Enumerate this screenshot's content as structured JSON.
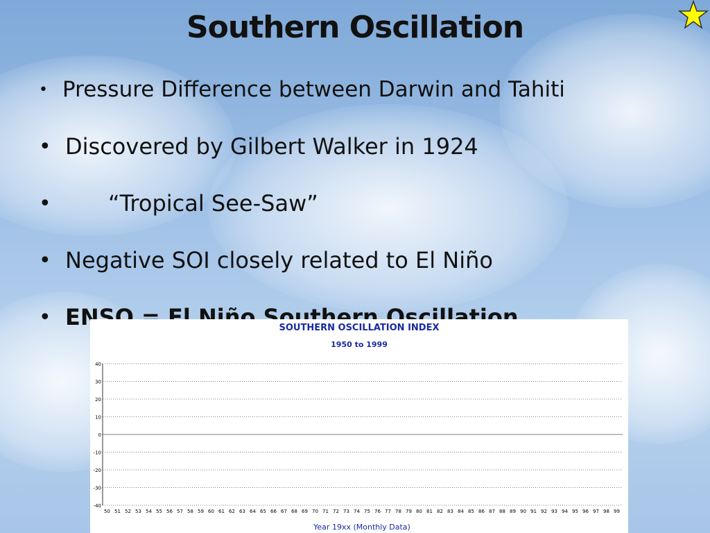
{
  "slide": {
    "title": "Southern Oscillation",
    "bullets": [
      "Pressure Difference between Darwin and Tahiti",
      "Discovered by Gilbert Walker in 1924",
      "“Tropical See-Saw”",
      "Negative SOI closely related to El Niño",
      "ENSO = El Niño Southern Oscillation"
    ],
    "bullet_symbol": "•",
    "colors": {
      "title": "#111111",
      "star_fill": "#ffff00",
      "positive": "#0000ff",
      "negative": "#ff0000",
      "chart_title": "#1a2aa0"
    }
  },
  "chart_data": {
    "type": "bar",
    "title": "SOUTHERN OSCILLATION INDEX",
    "subtitle": "1950 to 1999",
    "xlabel": "Year 19xx (Monthly Data)",
    "ylabel": "",
    "ylim": [
      -40,
      40
    ],
    "yticks": [
      40,
      30,
      20,
      10,
      0,
      -10,
      -20,
      -30,
      -40
    ],
    "x_tick_labels": [
      "50",
      "51",
      "52",
      "53",
      "54",
      "55",
      "56",
      "57",
      "58",
      "59",
      "60",
      "61",
      "62",
      "63",
      "64",
      "65",
      "66",
      "67",
      "68",
      "69",
      "70",
      "71",
      "72",
      "73",
      "74",
      "75",
      "76",
      "77",
      "78",
      "79",
      "80",
      "81",
      "82",
      "83",
      "84",
      "85",
      "86",
      "87",
      "88",
      "89",
      "90",
      "91",
      "92",
      "93",
      "94",
      "95",
      "96",
      "97",
      "98",
      "99"
    ],
    "grid": true,
    "series": [
      {
        "values": [
          0
        ]
      }
    ]
  }
}
